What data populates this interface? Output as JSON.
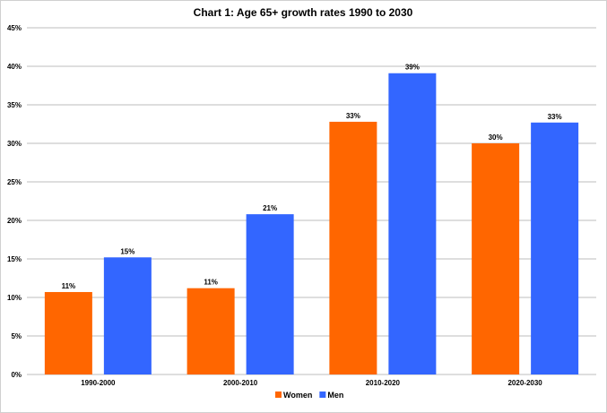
{
  "chart_data": {
    "type": "bar",
    "title": "Chart 1: Age 65+ growth rates 1990 to 2030",
    "xlabel": "",
    "ylabel": "",
    "categories": [
      "1990-2000",
      "2000-2010",
      "2010-2020",
      "2020-2030"
    ],
    "ylim": [
      0,
      45
    ],
    "yticks": [
      0,
      5,
      10,
      15,
      20,
      25,
      30,
      35,
      40,
      45
    ],
    "ytick_labels": [
      "0%",
      "5%",
      "10%",
      "15%",
      "20%",
      "25%",
      "30%",
      "35%",
      "40%",
      "45%"
    ],
    "grid": true,
    "legend_position": "bottom",
    "series": [
      {
        "name": "Women",
        "color": "#ff6600",
        "values": [
          10.7,
          11.2,
          32.8,
          30.0
        ],
        "labels": [
          "11%",
          "11%",
          "33%",
          "30%"
        ]
      },
      {
        "name": "Men",
        "color": "#3366ff",
        "values": [
          15.2,
          20.8,
          39.1,
          32.7
        ],
        "labels": [
          "15%",
          "21%",
          "39%",
          "33%"
        ]
      }
    ]
  }
}
